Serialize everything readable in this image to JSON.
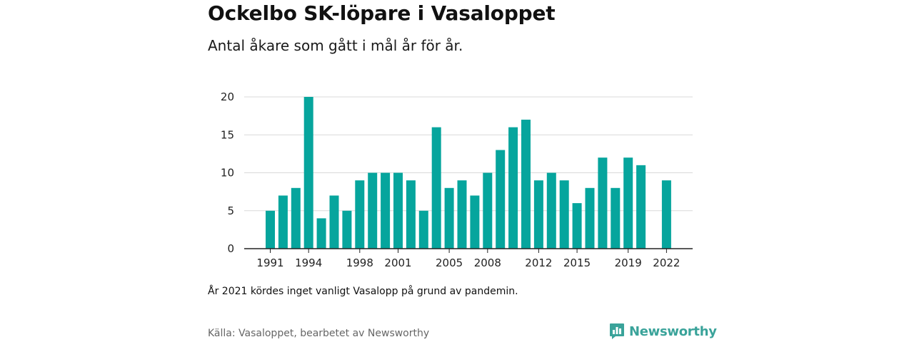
{
  "header": {
    "title": "Ockelbo SK-löpare i Vasaloppet",
    "subtitle": "Antal åkare som gått i mål år för år."
  },
  "footer": {
    "note": "År 2021 kördes inget vanligt Vasalopp på grund av pandemin.",
    "source": "Källa: Vasaloppet, bearbetet av Newsworthy",
    "brand": "Newsworthy"
  },
  "colors": {
    "bar": "#06a59d",
    "grid": "#d9d9d9",
    "axis": "#222222",
    "brand": "#3aa39a"
  },
  "icons": {
    "brand_logo": "newsworthy-bar-chart-icon"
  },
  "chart_data": {
    "type": "bar",
    "title": "",
    "xlabel": "",
    "ylabel": "",
    "ylim": [
      0,
      20
    ],
    "yticks": [
      0,
      5,
      10,
      15,
      20
    ],
    "xtick_labels": [
      "1991",
      "1994",
      "1998",
      "2001",
      "2005",
      "2008",
      "2012",
      "2015",
      "2019",
      "2022"
    ],
    "grid": true,
    "legend": "none",
    "categories": [
      "1991",
      "1992",
      "1993",
      "1994",
      "1995",
      "1996",
      "1997",
      "1998",
      "1999",
      "2000",
      "2001",
      "2002",
      "2003",
      "2004",
      "2005",
      "2006",
      "2007",
      "2008",
      "2009",
      "2010",
      "2011",
      "2012",
      "2013",
      "2014",
      "2015",
      "2016",
      "2017",
      "2018",
      "2019",
      "2020",
      "2021",
      "2022"
    ],
    "values": [
      5,
      7,
      8,
      20,
      4,
      7,
      5,
      9,
      10,
      10,
      10,
      9,
      5,
      16,
      8,
      9,
      7,
      10,
      13,
      16,
      17,
      9,
      10,
      9,
      6,
      8,
      12,
      8,
      12,
      11,
      null,
      9
    ]
  }
}
